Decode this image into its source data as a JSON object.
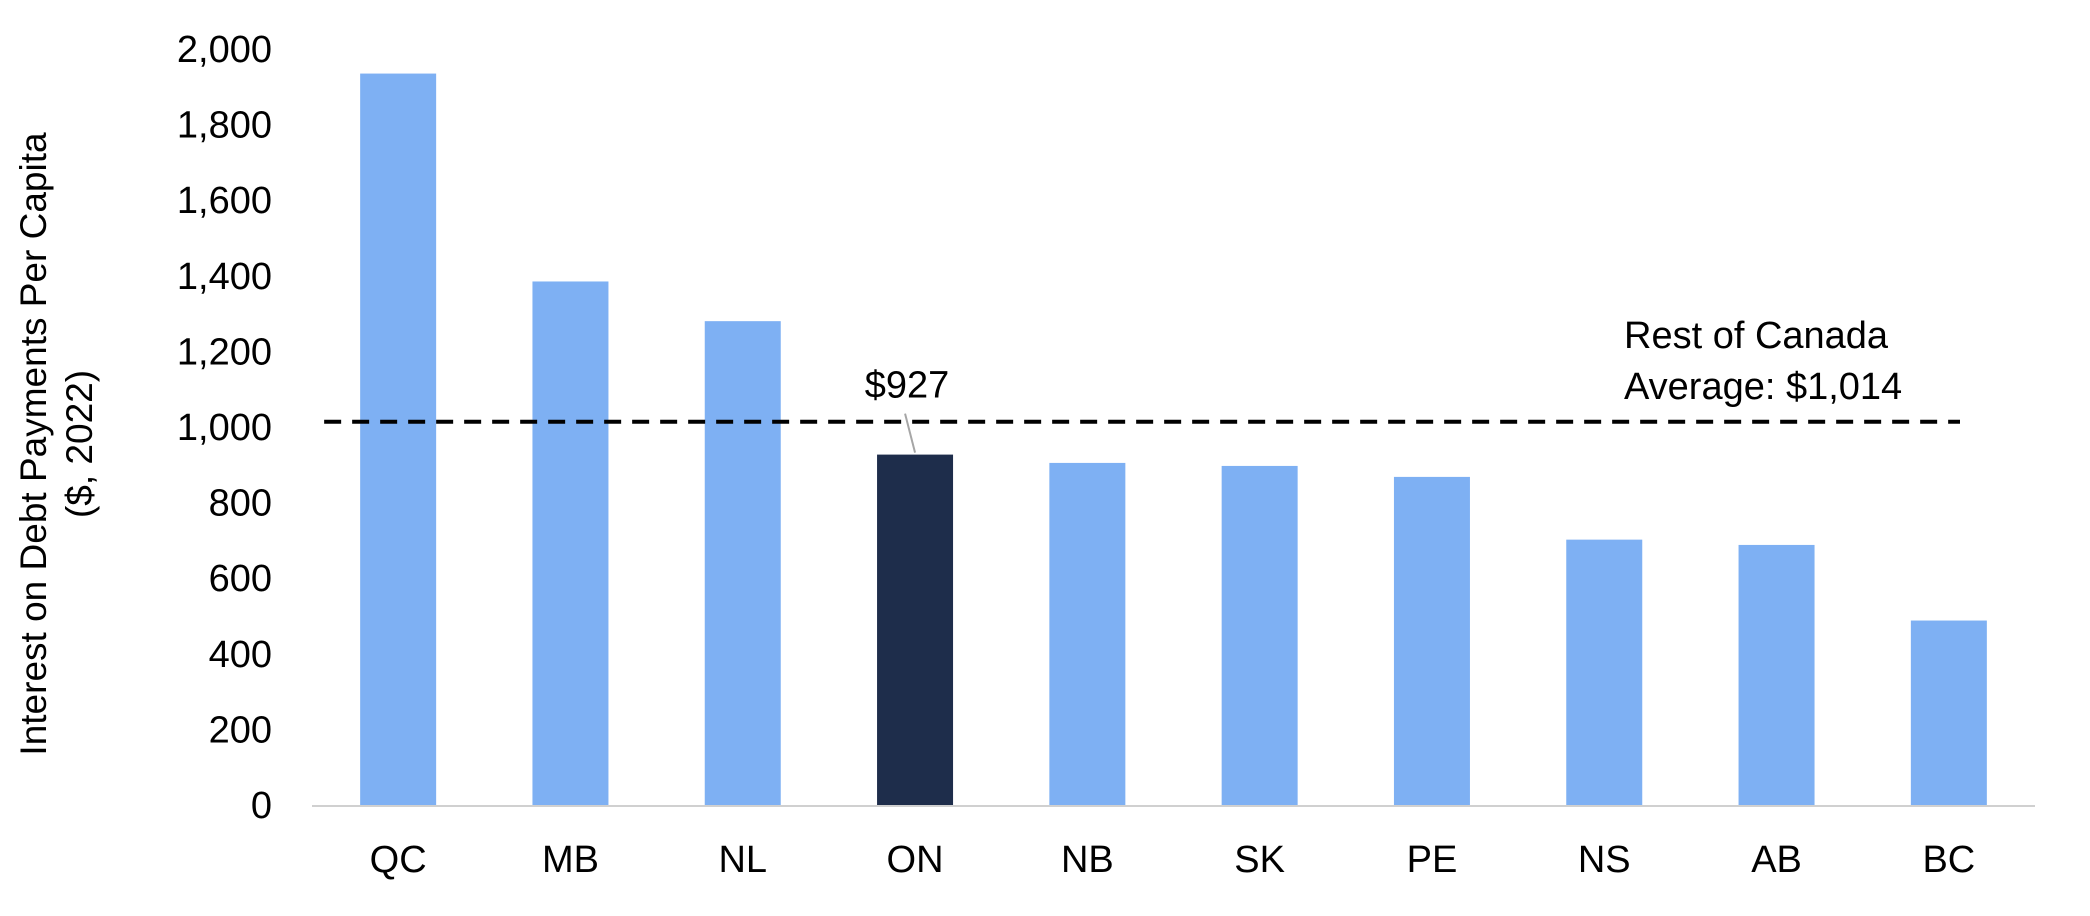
{
  "chart_data": {
    "type": "bar",
    "title": "",
    "xlabel": "",
    "ylabel_lines": [
      "Interest on Debt Payments Per Capita",
      "($, 2022)"
    ],
    "categories": [
      "QC",
      "MB",
      "NL",
      "ON",
      "NB",
      "SK",
      "PE",
      "NS",
      "AB",
      "BC"
    ],
    "values": [
      1935,
      1385,
      1280,
      927,
      905,
      897,
      868,
      702,
      688,
      488
    ],
    "highlight_category": "ON",
    "ylim": [
      0,
      2000
    ],
    "yticks": [
      0,
      200,
      400,
      600,
      800,
      1000,
      1200,
      1400,
      1600,
      1800,
      2000
    ],
    "ytick_labels": [
      "0",
      "200",
      "400",
      "600",
      "800",
      "1,000",
      "1,200",
      "1,400",
      "1,600",
      "1,800",
      "2,000"
    ],
    "grid": false,
    "legend": "none",
    "reference_line": {
      "value": 1014,
      "style": "dashed",
      "label_lines": [
        "Rest of Canada",
        "Average: $1,014"
      ]
    },
    "annotations": [
      {
        "category": "ON",
        "text": "$927"
      }
    ],
    "colors": {
      "bar": "#7eb0f3",
      "highlight": "#1e2d4b",
      "reference_line": "#000000",
      "axis": "#d0d0d0",
      "leader": "#a6a6a6"
    }
  }
}
